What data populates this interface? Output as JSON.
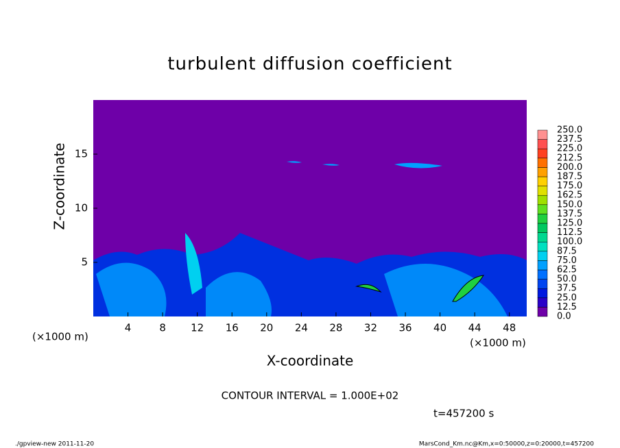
{
  "chart_data": {
    "type": "contour",
    "title": "turbulent diffusion coefficient",
    "x_label": "X-coordinate",
    "y_label": "Z-coordinate",
    "x_units": "(×1000 m)",
    "xlim": [
      0,
      50
    ],
    "xticks": [
      4,
      8,
      12,
      16,
      20,
      24,
      28,
      32,
      36,
      40,
      44,
      48
    ],
    "ylim": [
      0,
      20
    ],
    "yticks": [
      5,
      10,
      15
    ],
    "colorbar": {
      "levels": [
        {
          "value": 0,
          "label": "0.0"
        },
        12.5,
        {
          "value": 25,
          "label": "25.0"
        },
        37.5,
        {
          "value": 50,
          "label": "50.0"
        },
        62.5,
        {
          "value": 75,
          "label": "75.0"
        },
        87.5,
        {
          "value": 100,
          "label": "100.0"
        },
        112.5,
        {
          "value": 125,
          "label": "125.0"
        },
        137.5,
        {
          "value": 150,
          "label": "150.0"
        },
        162.5,
        {
          "value": 175,
          "label": "175.0"
        },
        187.5,
        {
          "value": 200,
          "label": "200.0"
        },
        212.5,
        {
          "value": 225,
          "label": "225.0"
        },
        237.5,
        {
          "value": 250,
          "label": "250.0"
        }
      ],
      "colors": [
        "#6e00a8",
        "#2a00c8",
        "#0018e0",
        "#0044f0",
        "#0070ff",
        "#00a0ff",
        "#00d0f0",
        "#00e0c0",
        "#00d890",
        "#00c860",
        "#20d040",
        "#60e020",
        "#a0e000",
        "#e0e000",
        "#ffd000",
        "#ffa000",
        "#ff7000",
        "#ff4020",
        "#ff5050",
        "#ff9090"
      ]
    },
    "contour_interval": "CONTOUR INTERVAL = 1.000E+02",
    "time_label": "t=457200 s",
    "footer_left": "./gpview-new  2011-11-20",
    "footer_right": "MarsCond_Km.nc@Km,x=0:50000,z=0:20000,t=457200"
  }
}
